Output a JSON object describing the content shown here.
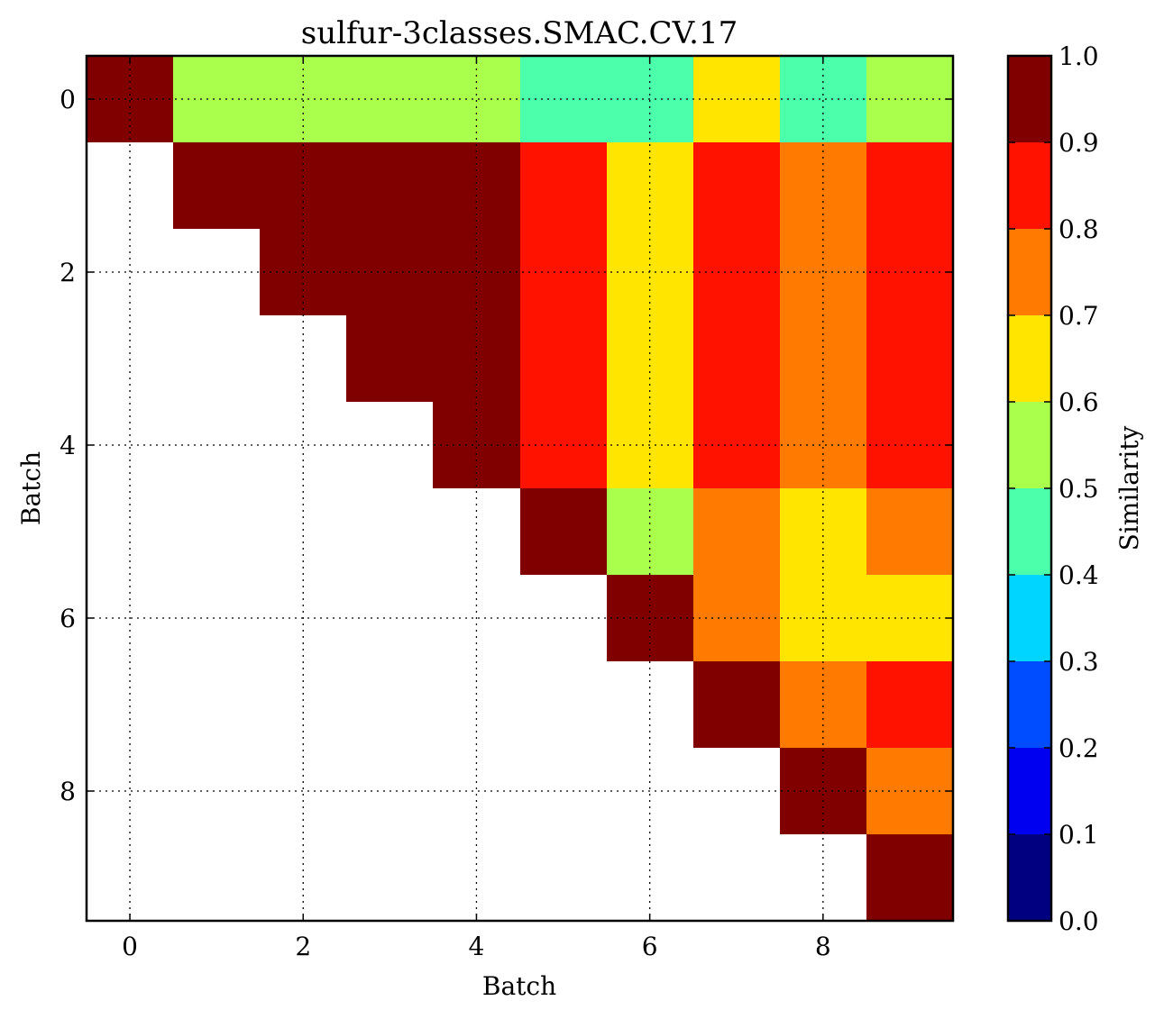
{
  "chart_data": {
    "type": "heatmap",
    "title": "sulfur-3classes.SMAC.CV.17",
    "xlabel": "Batch",
    "ylabel": "Batch",
    "x_ticks": [
      "0",
      "2",
      "4",
      "6",
      "8"
    ],
    "y_ticks": [
      "0",
      "2",
      "4",
      "6",
      "8"
    ],
    "x_range": [
      -0.5,
      9.5
    ],
    "y_range": [
      -0.5,
      9.5
    ],
    "grid": true,
    "colorbar": {
      "label": "Similarity",
      "range": [
        0.0,
        1.0
      ],
      "ticks": [
        "0.0",
        "0.1",
        "0.2",
        "0.3",
        "0.4",
        "0.5",
        "0.6",
        "0.7",
        "0.8",
        "0.9",
        "1.0"
      ],
      "colors": [
        "#000080",
        "#0000f1",
        "#004dff",
        "#00d5ff",
        "#4cffaa",
        "#aaff4d",
        "#ffe500",
        "#ff7a00",
        "#ff1300",
        "#800000"
      ]
    },
    "matrix": [
      [
        0.95,
        0.55,
        0.55,
        0.55,
        0.55,
        0.45,
        0.45,
        0.65,
        0.45,
        0.55
      ],
      [
        null,
        0.95,
        0.95,
        0.95,
        0.95,
        0.85,
        0.65,
        0.85,
        0.75,
        0.85
      ],
      [
        null,
        null,
        0.95,
        0.95,
        0.95,
        0.85,
        0.65,
        0.85,
        0.75,
        0.85
      ],
      [
        null,
        null,
        null,
        0.95,
        0.95,
        0.85,
        0.65,
        0.85,
        0.75,
        0.85
      ],
      [
        null,
        null,
        null,
        null,
        0.95,
        0.85,
        0.65,
        0.85,
        0.75,
        0.85
      ],
      [
        null,
        null,
        null,
        null,
        null,
        0.95,
        0.55,
        0.75,
        0.65,
        0.75
      ],
      [
        null,
        null,
        null,
        null,
        null,
        null,
        0.95,
        0.75,
        0.65,
        0.65
      ],
      [
        null,
        null,
        null,
        null,
        null,
        null,
        null,
        0.95,
        0.75,
        0.85
      ],
      [
        null,
        null,
        null,
        null,
        null,
        null,
        null,
        null,
        0.95,
        0.75
      ],
      [
        null,
        null,
        null,
        null,
        null,
        null,
        null,
        null,
        null,
        0.95
      ]
    ]
  }
}
